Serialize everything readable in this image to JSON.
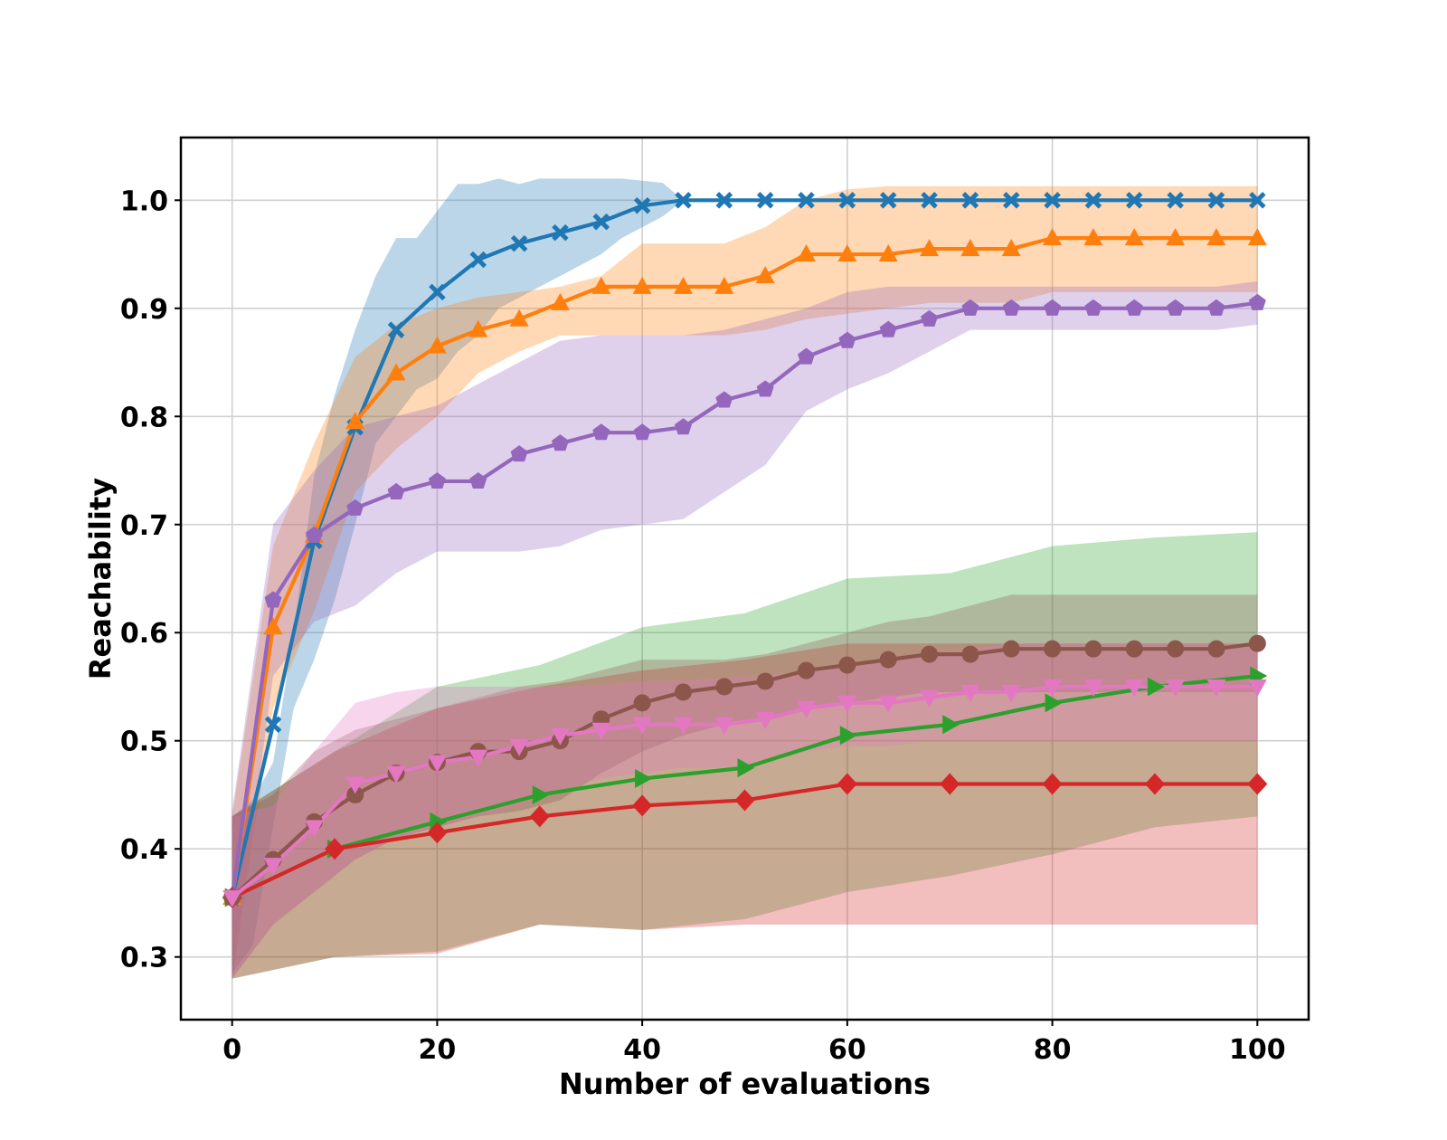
{
  "chart_data": {
    "type": "line",
    "title": "",
    "xlabel": "Number of evaluations",
    "ylabel": "Reachability",
    "xlim": [
      -5,
      105
    ],
    "ylim": [
      0.242,
      1.058
    ],
    "xticks": [
      0,
      20,
      40,
      60,
      80,
      100
    ],
    "yticks": [
      0.3,
      0.4,
      0.5,
      0.6,
      0.7,
      0.8,
      0.9,
      1.0
    ],
    "xtick_labels": [
      "0",
      "20",
      "40",
      "60",
      "80",
      "100"
    ],
    "ytick_labels": [
      "0.3",
      "0.4",
      "0.5",
      "0.6",
      "0.7",
      "0.8",
      "0.9",
      "1.0"
    ],
    "grid": true,
    "legend": "none",
    "series": [
      {
        "name": "blue-x",
        "color": "#1f77b4",
        "marker": "x",
        "x": [
          0,
          4,
          8,
          12,
          16,
          20,
          24,
          28,
          32,
          36,
          40,
          44,
          48,
          52,
          56,
          60,
          64,
          68,
          72,
          76,
          80,
          84,
          88,
          92,
          96,
          100
        ],
        "y": [
          0.355,
          0.515,
          0.685,
          0.79,
          0.88,
          0.915,
          0.945,
          0.96,
          0.97,
          0.98,
          0.995,
          1.0,
          1.0,
          1.0,
          1.0,
          1.0,
          1.0,
          1.0,
          1.0,
          1.0,
          1.0,
          1.0,
          1.0,
          1.0,
          1.0,
          1.0
        ],
        "band_x": [
          0,
          2,
          4,
          6,
          8,
          10,
          12,
          14,
          16,
          18,
          20,
          22,
          24,
          26,
          28,
          30,
          32,
          34,
          36,
          38,
          40,
          42,
          44
        ],
        "band_upper": [
          0.43,
          0.445,
          0.48,
          0.6,
          0.745,
          0.82,
          0.88,
          0.93,
          0.965,
          0.965,
          0.99,
          1.015,
          1.015,
          1.02,
          1.015,
          1.02,
          1.02,
          1.02,
          1.02,
          1.02,
          1.018,
          1.016,
          1.0
        ],
        "band_lower": [
          0.285,
          0.31,
          0.42,
          0.53,
          0.575,
          0.63,
          0.7,
          0.775,
          0.8,
          0.825,
          0.835,
          0.86,
          0.875,
          0.9,
          0.91,
          0.92,
          0.93,
          0.94,
          0.95,
          0.965,
          0.975,
          0.985,
          1.0
        ]
      },
      {
        "name": "orange-triangle",
        "color": "#ff7f0e",
        "marker": "triangle-up",
        "x": [
          0,
          4,
          8,
          12,
          16,
          20,
          24,
          28,
          32,
          36,
          40,
          44,
          48,
          52,
          56,
          60,
          64,
          68,
          72,
          76,
          80,
          84,
          88,
          92,
          96,
          100
        ],
        "y": [
          0.355,
          0.605,
          0.69,
          0.795,
          0.84,
          0.865,
          0.88,
          0.89,
          0.905,
          0.92,
          0.92,
          0.92,
          0.92,
          0.93,
          0.95,
          0.95,
          0.95,
          0.955,
          0.955,
          0.955,
          0.965,
          0.965,
          0.965,
          0.965,
          0.965,
          0.965
        ],
        "band_x": [
          0,
          4,
          8,
          12,
          16,
          20,
          24,
          28,
          32,
          36,
          40,
          44,
          48,
          52,
          56,
          60,
          64,
          68,
          72,
          76,
          80,
          84,
          88,
          92,
          96,
          100
        ],
        "band_upper": [
          0.43,
          0.68,
          0.775,
          0.855,
          0.885,
          0.9,
          0.91,
          0.915,
          0.92,
          0.93,
          0.96,
          0.96,
          0.96,
          0.975,
          1.0,
          1.01,
          1.013,
          1.013,
          1.013,
          1.013,
          1.013,
          1.013,
          1.013,
          1.013,
          1.013,
          1.013
        ],
        "band_lower": [
          0.28,
          0.53,
          0.62,
          0.73,
          0.77,
          0.8,
          0.84,
          0.86,
          0.875,
          0.875,
          0.875,
          0.875,
          0.875,
          0.88,
          0.89,
          0.895,
          0.9,
          0.905,
          0.905,
          0.905,
          0.915,
          0.915,
          0.915,
          0.915,
          0.915,
          0.915
        ]
      },
      {
        "name": "green-triangle-right",
        "color": "#2ca02c",
        "marker": "triangle-right",
        "x": [
          0,
          10,
          20,
          30,
          40,
          50,
          60,
          70,
          80,
          90,
          100
        ],
        "y": [
          0.355,
          0.4,
          0.425,
          0.45,
          0.465,
          0.475,
          0.505,
          0.515,
          0.535,
          0.55,
          0.56
        ],
        "band_x": [
          0,
          10,
          20,
          30,
          40,
          50,
          60,
          70,
          80,
          90,
          100
        ],
        "band_upper": [
          0.43,
          0.49,
          0.55,
          0.57,
          0.605,
          0.618,
          0.65,
          0.655,
          0.68,
          0.688,
          0.693
        ],
        "band_lower": [
          0.28,
          0.3,
          0.305,
          0.33,
          0.325,
          0.335,
          0.36,
          0.375,
          0.395,
          0.42,
          0.43
        ]
      },
      {
        "name": "red-diamond",
        "color": "#d62728",
        "marker": "diamond",
        "x": [
          0,
          10,
          20,
          30,
          40,
          50,
          60,
          70,
          80,
          90,
          100
        ],
        "y": [
          0.355,
          0.4,
          0.415,
          0.43,
          0.44,
          0.445,
          0.46,
          0.46,
          0.46,
          0.46,
          0.46
        ],
        "band_x": [
          0,
          10,
          20,
          30,
          40,
          50,
          60,
          70,
          80,
          90,
          100
        ],
        "band_upper": [
          0.43,
          0.49,
          0.53,
          0.55,
          0.565,
          0.575,
          0.59,
          0.59,
          0.59,
          0.59,
          0.59
        ],
        "band_lower": [
          0.28,
          0.3,
          0.303,
          0.33,
          0.325,
          0.33,
          0.33,
          0.33,
          0.33,
          0.33,
          0.33
        ]
      },
      {
        "name": "purple-pentagon",
        "color": "#9467bd",
        "marker": "pentagon",
        "x": [
          0,
          4,
          8,
          12,
          16,
          20,
          24,
          28,
          32,
          36,
          40,
          44,
          48,
          52,
          56,
          60,
          64,
          68,
          72,
          76,
          80,
          84,
          88,
          92,
          96,
          100
        ],
        "y": [
          0.355,
          0.63,
          0.69,
          0.715,
          0.73,
          0.74,
          0.74,
          0.765,
          0.775,
          0.785,
          0.785,
          0.79,
          0.815,
          0.825,
          0.855,
          0.87,
          0.88,
          0.89,
          0.9,
          0.9,
          0.9,
          0.9,
          0.9,
          0.9,
          0.9,
          0.905
        ],
        "band_x": [
          0,
          4,
          8,
          12,
          16,
          20,
          24,
          28,
          32,
          36,
          40,
          44,
          48,
          52,
          56,
          60,
          64,
          68,
          72,
          76,
          80,
          84,
          88,
          92,
          96,
          100
        ],
        "band_upper": [
          0.435,
          0.7,
          0.75,
          0.79,
          0.8,
          0.81,
          0.83,
          0.85,
          0.87,
          0.875,
          0.875,
          0.875,
          0.88,
          0.89,
          0.9,
          0.915,
          0.92,
          0.92,
          0.92,
          0.92,
          0.92,
          0.92,
          0.92,
          0.92,
          0.92,
          0.925
        ],
        "band_lower": [
          0.28,
          0.56,
          0.61,
          0.625,
          0.655,
          0.675,
          0.675,
          0.675,
          0.68,
          0.695,
          0.7,
          0.705,
          0.73,
          0.755,
          0.805,
          0.825,
          0.84,
          0.86,
          0.88,
          0.88,
          0.88,
          0.88,
          0.88,
          0.88,
          0.88,
          0.885
        ]
      },
      {
        "name": "brown-circle",
        "color": "#8c564b",
        "marker": "circle",
        "x": [
          0,
          4,
          8,
          12,
          16,
          20,
          24,
          28,
          32,
          36,
          40,
          44,
          48,
          52,
          56,
          60,
          64,
          68,
          72,
          76,
          80,
          84,
          88,
          92,
          96,
          100
        ],
        "y": [
          0.355,
          0.39,
          0.425,
          0.45,
          0.47,
          0.48,
          0.49,
          0.49,
          0.5,
          0.52,
          0.535,
          0.545,
          0.55,
          0.555,
          0.565,
          0.57,
          0.575,
          0.58,
          0.58,
          0.585,
          0.585,
          0.585,
          0.585,
          0.585,
          0.585,
          0.59
        ],
        "band_x": [
          0,
          4,
          8,
          12,
          16,
          20,
          24,
          28,
          32,
          36,
          40,
          44,
          48,
          52,
          56,
          60,
          64,
          68,
          72,
          76,
          80,
          84,
          88,
          92,
          96,
          100
        ],
        "band_upper": [
          0.43,
          0.45,
          0.49,
          0.51,
          0.52,
          0.53,
          0.54,
          0.55,
          0.555,
          0.565,
          0.575,
          0.575,
          0.575,
          0.58,
          0.59,
          0.6,
          0.61,
          0.615,
          0.625,
          0.635,
          0.635,
          0.635,
          0.635,
          0.635,
          0.635,
          0.635
        ],
        "band_lower": [
          0.28,
          0.33,
          0.36,
          0.39,
          0.41,
          0.42,
          0.43,
          0.435,
          0.445,
          0.47,
          0.49,
          0.505,
          0.515,
          0.52,
          0.53,
          0.535,
          0.54,
          0.545,
          0.545,
          0.545,
          0.545,
          0.545,
          0.545,
          0.545,
          0.545,
          0.545
        ]
      },
      {
        "name": "pink-triangle-down",
        "color": "#e377c2",
        "marker": "triangle-down",
        "x": [
          0,
          4,
          8,
          12,
          16,
          20,
          24,
          28,
          32,
          36,
          40,
          44,
          48,
          52,
          56,
          60,
          64,
          68,
          72,
          76,
          80,
          84,
          88,
          92,
          96,
          100
        ],
        "y": [
          0.355,
          0.385,
          0.42,
          0.46,
          0.47,
          0.48,
          0.485,
          0.495,
          0.505,
          0.51,
          0.515,
          0.515,
          0.515,
          0.52,
          0.53,
          0.535,
          0.535,
          0.54,
          0.545,
          0.545,
          0.55,
          0.55,
          0.55,
          0.55,
          0.55,
          0.55
        ],
        "band_x": [
          0,
          4,
          8,
          12,
          16,
          20,
          24,
          28,
          32,
          36,
          40,
          44,
          48,
          52,
          56,
          60,
          64,
          68,
          72,
          76,
          80,
          84,
          88,
          92,
          96,
          100
        ],
        "band_upper": [
          0.43,
          0.44,
          0.49,
          0.535,
          0.545,
          0.55,
          0.55,
          0.55,
          0.55,
          0.552,
          0.555,
          0.556,
          0.558,
          0.56,
          0.565,
          0.57,
          0.575,
          0.58,
          0.585,
          0.59,
          0.59,
          0.59,
          0.59,
          0.59,
          0.59,
          0.59
        ],
        "band_lower": [
          0.28,
          0.33,
          0.36,
          0.39,
          0.41,
          0.42,
          0.43,
          0.44,
          0.455,
          0.465,
          0.47,
          0.475,
          0.475,
          0.48,
          0.49,
          0.495,
          0.495,
          0.5,
          0.5,
          0.5,
          0.5,
          0.5,
          0.5,
          0.5,
          0.5,
          0.5
        ]
      }
    ]
  }
}
